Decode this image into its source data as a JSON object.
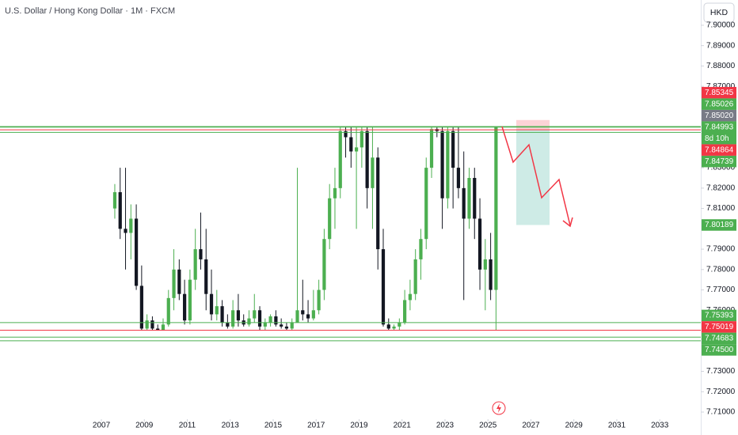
{
  "chart_data": {
    "type": "candlestick",
    "title": "U.S. Dollar / Hong Kong Dollar · 1M · FXCM",
    "currency": "HKD",
    "up_color": "#4caf50",
    "down_color": "#131722",
    "xlim": [
      2002.28,
      2034.91
    ],
    "ylim": [
      7.7065,
      7.9124
    ],
    "xticks": [
      2007,
      2009,
      2011,
      2013,
      2015,
      2017,
      2019,
      2021,
      2023,
      2025,
      2027,
      2029,
      2031,
      2033
    ],
    "yticks": [
      {
        "value": 7.9,
        "label": "7.90000"
      },
      {
        "value": 7.89,
        "label": "7.89000"
      },
      {
        "value": 7.88,
        "label": "7.88000"
      },
      {
        "value": 7.87,
        "label": "7.87000"
      },
      {
        "value": 7.83,
        "label": "7.83000"
      },
      {
        "value": 7.82,
        "label": "7.82000"
      },
      {
        "value": 7.81,
        "label": "7.81000"
      },
      {
        "value": 7.79,
        "label": "7.79000"
      },
      {
        "value": 7.78,
        "label": "7.78000"
      },
      {
        "value": 7.77,
        "label": "7.77000"
      },
      {
        "value": 7.76,
        "label": "7.76000"
      },
      {
        "value": 7.73,
        "label": "7.73000"
      },
      {
        "value": 7.72,
        "label": "7.72000"
      },
      {
        "value": 7.71,
        "label": "7.71000"
      }
    ],
    "x": [
      2007.625,
      2007.875,
      2008.125,
      2008.375,
      2008.625,
      2008.875,
      2009.125,
      2009.375,
      2009.625,
      2009.875,
      2010.125,
      2010.375,
      2010.625,
      2010.875,
      2011.125,
      2011.375,
      2011.625,
      2011.875,
      2012.125,
      2012.375,
      2012.625,
      2012.875,
      2013.125,
      2013.375,
      2013.625,
      2013.875,
      2014.125,
      2014.375,
      2014.625,
      2014.875,
      2015.125,
      2015.375,
      2015.625,
      2015.875,
      2016.125,
      2016.375,
      2016.625,
      2016.875,
      2017.125,
      2017.375,
      2017.625,
      2017.875,
      2018.125,
      2018.375,
      2018.625,
      2018.875,
      2019.125,
      2019.375,
      2019.625,
      2019.875,
      2020.125,
      2020.375,
      2020.625,
      2020.875,
      2021.125,
      2021.375,
      2021.625,
      2021.875,
      2022.125,
      2022.375,
      2022.625,
      2022.875,
      2023.125,
      2023.375,
      2023.625,
      2023.875,
      2024.125,
      2024.375,
      2024.625,
      2024.875,
      2025.125,
      2025.375
    ],
    "open": [
      7.81,
      7.818,
      7.8,
      7.798,
      7.805,
      7.772,
      7.751,
      7.755,
      7.751,
      7.75,
      7.753,
      7.766,
      7.78,
      7.768,
      7.755,
      7.775,
      7.79,
      7.785,
      7.768,
      7.758,
      7.762,
      7.754,
      7.752,
      7.76,
      7.755,
      7.753,
      7.756,
      7.76,
      7.752,
      7.754,
      7.757,
      7.753,
      7.752,
      7.751,
      7.754,
      7.76,
      7.758,
      7.756,
      7.76,
      7.77,
      7.795,
      7.815,
      7.82,
      7.848,
      7.845,
      7.838,
      7.84,
      7.848,
      7.82,
      7.835,
      7.79,
      7.753,
      7.751,
      7.752,
      7.754,
      7.765,
      7.768,
      7.785,
      7.795,
      7.83,
      7.849,
      7.848,
      7.815,
      7.848,
      7.83,
      7.82,
      7.805,
      7.825,
      7.805,
      7.78,
      7.785,
      7.77
    ],
    "high": [
      7.822,
      7.83,
      7.83,
      7.812,
      7.812,
      7.782,
      7.758,
      7.757,
      7.753,
      7.756,
      7.77,
      7.79,
      7.785,
      7.775,
      7.78,
      7.8,
      7.808,
      7.8,
      7.78,
      7.77,
      7.765,
      7.758,
      7.765,
      7.768,
      7.758,
      7.76,
      7.768,
      7.762,
      7.756,
      7.758,
      7.76,
      7.756,
      7.754,
      7.756,
      7.83,
      7.775,
      7.765,
      7.77,
      7.775,
      7.8,
      7.822,
      7.83,
      7.85,
      7.85,
      7.85,
      7.85,
      7.85,
      7.85,
      7.85,
      7.84,
      7.8,
      7.756,
      7.753,
      7.756,
      7.77,
      7.775,
      7.79,
      7.8,
      7.835,
      7.85,
      7.85,
      7.85,
      7.85,
      7.85,
      7.85,
      7.838,
      7.83,
      7.83,
      7.815,
      7.795,
      7.798,
      7.85
    ],
    "low": [
      7.805,
      7.795,
      7.78,
      7.785,
      7.77,
      7.75,
      7.75,
      7.75,
      7.75,
      7.75,
      7.752,
      7.76,
      7.765,
      7.753,
      7.753,
      7.77,
      7.78,
      7.76,
      7.755,
      7.755,
      7.752,
      7.751,
      7.751,
      7.752,
      7.752,
      7.752,
      7.754,
      7.75,
      7.75,
      7.752,
      7.752,
      7.751,
      7.75,
      7.75,
      7.754,
      7.755,
      7.754,
      7.755,
      7.758,
      7.765,
      7.79,
      7.8,
      7.815,
      7.835,
      7.83,
      7.8,
      7.83,
      7.81,
      7.8,
      7.78,
      7.752,
      7.75,
      7.75,
      7.75,
      7.753,
      7.76,
      7.765,
      7.775,
      7.79,
      7.825,
      7.845,
      7.8,
      7.81,
      7.81,
      7.815,
      7.765,
      7.8,
      7.795,
      7.77,
      7.76,
      7.765,
      7.7502
    ],
    "close": [
      7.818,
      7.8,
      7.798,
      7.805,
      7.772,
      7.751,
      7.755,
      7.751,
      7.75,
      7.753,
      7.766,
      7.78,
      7.768,
      7.755,
      7.775,
      7.79,
      7.785,
      7.768,
      7.758,
      7.762,
      7.754,
      7.752,
      7.76,
      7.755,
      7.753,
      7.756,
      7.76,
      7.752,
      7.754,
      7.757,
      7.753,
      7.752,
      7.751,
      7.754,
      7.76,
      7.758,
      7.756,
      7.76,
      7.77,
      7.795,
      7.815,
      7.82,
      7.848,
      7.845,
      7.838,
      7.84,
      7.848,
      7.82,
      7.835,
      7.79,
      7.753,
      7.751,
      7.752,
      7.754,
      7.765,
      7.768,
      7.785,
      7.795,
      7.83,
      7.849,
      7.848,
      7.815,
      7.848,
      7.83,
      7.82,
      7.805,
      7.825,
      7.805,
      7.78,
      7.785,
      7.77,
      7.8502
    ],
    "price_labels": [
      {
        "value": 7.85345,
        "color": "#f23645",
        "line": false
      },
      {
        "value": 7.85026,
        "color": "#4caf50",
        "line": true
      },
      {
        "value": {
          "value": 7.8502,
          "label": "7.85020"
        },
        "color": "#787b86",
        "line": false
      },
      {
        "value": 7.84993,
        "color": "#4caf50",
        "line": true,
        "countdown": "8d 10h"
      },
      {
        "value": 7.84864,
        "color": "#f23645",
        "line": true
      },
      {
        "value": 7.84739,
        "color": "#4caf50",
        "line": true
      },
      {
        "value": 7.80189,
        "color": "#4caf50",
        "line": false
      },
      {
        "value": 7.75393,
        "color": "#4caf50",
        "line": true
      },
      {
        "value": 7.75019,
        "color": "#f23645",
        "line": true
      },
      {
        "value": 7.74683,
        "color": "#4caf50",
        "line": true
      },
      {
        "value": {
          "value": 7.745,
          "label": "7.74500"
        },
        "color": "#4caf50",
        "line": true
      }
    ]
  }
}
